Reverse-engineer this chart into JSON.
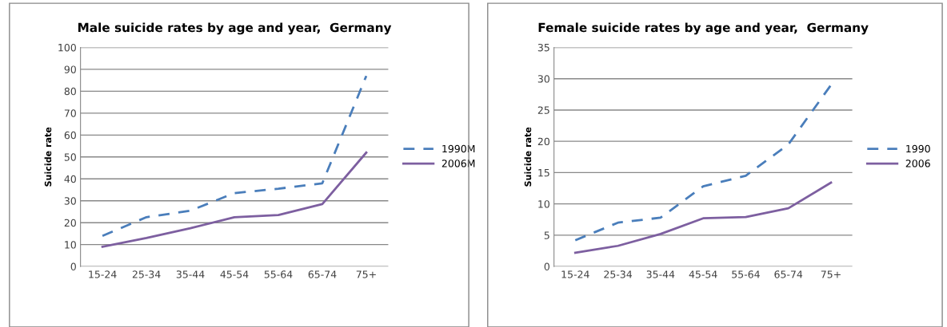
{
  "chart_data": [
    {
      "type": "line",
      "title": "Male suicide rates by age and year,  Germany",
      "ylabel": "Suicide rate",
      "categories": [
        "15-24",
        "25-34",
        "35-44",
        "45-54",
        "55-64",
        "65-74",
        "75+"
      ],
      "ylim": [
        0,
        100
      ],
      "yticks": [
        0,
        10,
        20,
        30,
        40,
        50,
        60,
        70,
        80,
        90,
        100
      ],
      "grid": "y",
      "legend": "right",
      "marker": "none",
      "series": [
        {
          "name": "1990M",
          "color": "#4a7ebb",
          "line_style": "dashed",
          "values": [
            14,
            22.5,
            25.5,
            33.5,
            35.5,
            38,
            87
          ]
        },
        {
          "name": "2006M",
          "color": "#7d5fa0",
          "line_style": "solid",
          "values": [
            9,
            13,
            17.5,
            22.5,
            23.5,
            28.5,
            52
          ]
        }
      ]
    },
    {
      "type": "line",
      "title": "Female suicide rates by age and year,  Germany",
      "ylabel": "Suicide rate",
      "categories": [
        "15-24",
        "25-34",
        "35-44",
        "45-54",
        "55-64",
        "65-74",
        "75+"
      ],
      "ylim": [
        0,
        35
      ],
      "yticks": [
        0,
        5,
        10,
        15,
        20,
        25,
        30,
        35
      ],
      "grid": "y",
      "legend": "right",
      "marker": "none",
      "series": [
        {
          "name": "1990",
          "color": "#4a7ebb",
          "line_style": "dashed",
          "values": [
            4.2,
            7,
            7.8,
            12.8,
            14.5,
            19.5,
            29
          ]
        },
        {
          "name": "2006",
          "color": "#7d5fa0",
          "line_style": "solid",
          "values": [
            2.2,
            3.3,
            5.2,
            7.7,
            7.9,
            9.3,
            13.4
          ]
        }
      ]
    }
  ]
}
